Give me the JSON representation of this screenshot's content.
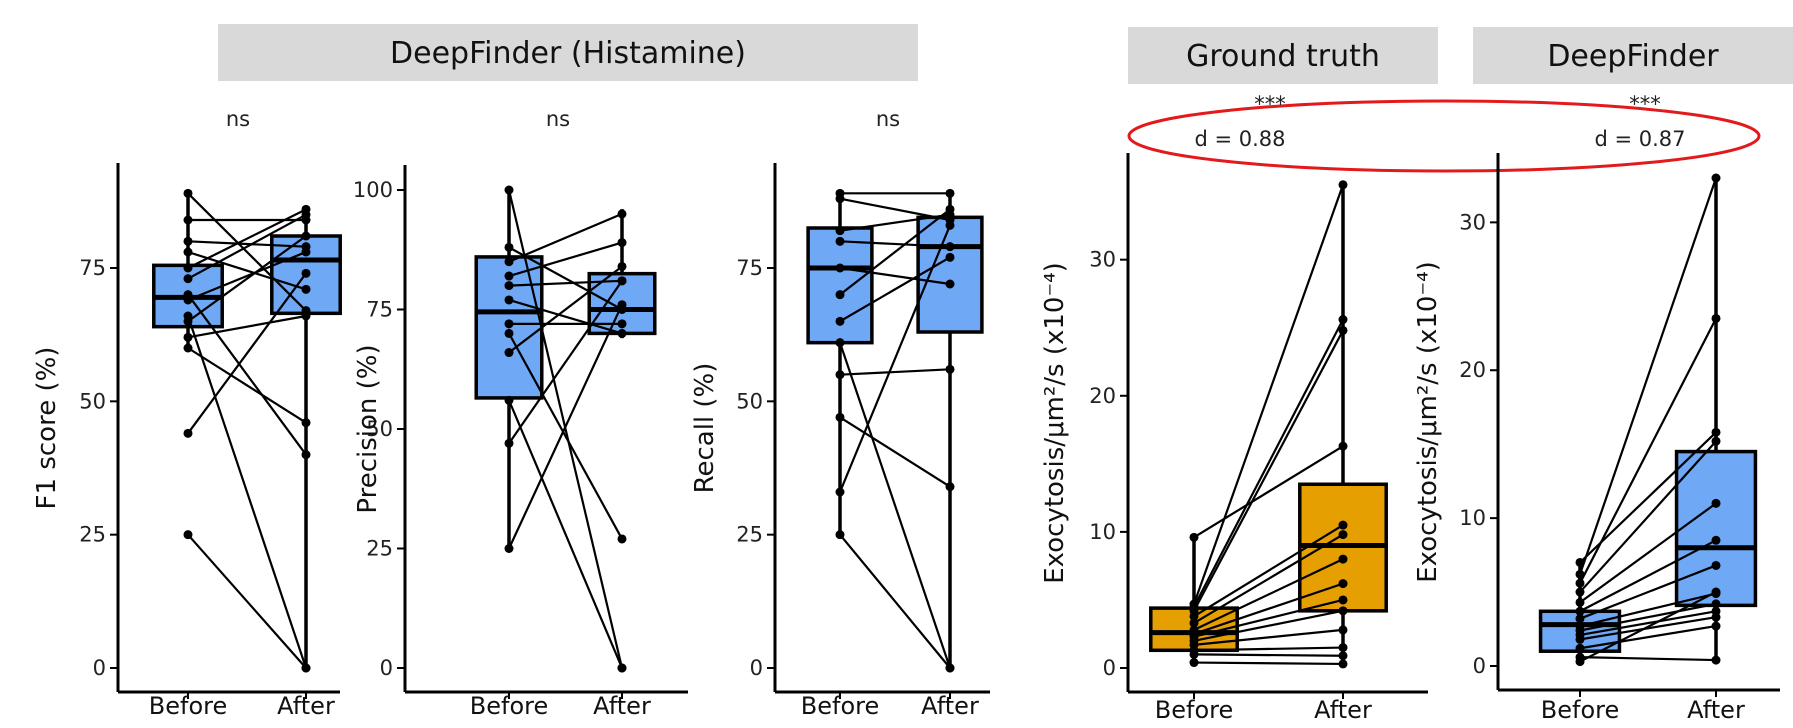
{
  "strips": {
    "histamine": "DeepFinder (Histamine)",
    "ground_truth": "Ground truth",
    "deepfinder": "DeepFinder"
  },
  "colors": {
    "blue_fill": "#6fa8f5",
    "orange_fill": "#e69f00",
    "callout": "#e31a1c"
  },
  "chart_data": [
    {
      "type": "box",
      "strip": "DeepFinder (Histamine)",
      "ylabel": "F1 score (%)",
      "ylim": [
        0,
        90
      ],
      "yticks": [
        0,
        25,
        50,
        75
      ],
      "categories": [
        "Before",
        "After"
      ],
      "fill": "blue",
      "significance": "ns",
      "effect_size": "",
      "boxes": [
        {
          "q1": 64,
          "median": 69.5,
          "q3": 75.5,
          "whisker_low": 60,
          "whisker_high": 89
        },
        {
          "q1": 66.5,
          "median": 76.5,
          "q3": 81,
          "whisker_low": 0,
          "whisker_high": 86.5
        }
      ],
      "pairs": [
        [
          89,
          67
        ],
        [
          84,
          84
        ],
        [
          80,
          79
        ],
        [
          78,
          71
        ],
        [
          75,
          86
        ],
        [
          73,
          85
        ],
        [
          70,
          40
        ],
        [
          69,
          78
        ],
        [
          66,
          0
        ],
        [
          65,
          81
        ],
        [
          62,
          66
        ],
        [
          60,
          46
        ],
        [
          44,
          74
        ],
        [
          25,
          0
        ]
      ]
    },
    {
      "type": "box",
      "strip": "DeepFinder (Histamine)",
      "ylabel": "Precision (%)",
      "ylim": [
        0,
        100
      ],
      "yticks": [
        0,
        25,
        50,
        75,
        100
      ],
      "categories": [
        "Before",
        "After"
      ],
      "fill": "blue",
      "significance": "ns",
      "effect_size": "",
      "boxes": [
        {
          "q1": 56.5,
          "median": 74.5,
          "q3": 86,
          "whisker_low": 25,
          "whisker_high": 100
        },
        {
          "q1": 70,
          "median": 75,
          "q3": 82.5,
          "whisker_low": 69,
          "whisker_high": 96
        }
      ],
      "pairs": [
        [
          100,
          0
        ],
        [
          88,
          75
        ],
        [
          85,
          95
        ],
        [
          82,
          89
        ],
        [
          80,
          81
        ],
        [
          77,
          70
        ],
        [
          72,
          72
        ],
        [
          70,
          27
        ],
        [
          66,
          84
        ],
        [
          56,
          0
        ],
        [
          47,
          81
        ],
        [
          25,
          76
        ]
      ]
    },
    {
      "type": "box",
      "strip": "DeepFinder (Histamine)",
      "ylabel": "Recall (%)",
      "ylim": [
        0,
        90
      ],
      "yticks": [
        0,
        25,
        50,
        75
      ],
      "categories": [
        "Before",
        "After"
      ],
      "fill": "blue",
      "significance": "ns",
      "effect_size": "",
      "boxes": [
        {
          "q1": 61,
          "median": 75,
          "q3": 82.5,
          "whisker_low": 25,
          "whisker_high": 89
        },
        {
          "q1": 63,
          "median": 79,
          "q3": 84.5,
          "whisker_low": 0,
          "whisker_high": 89
        }
      ],
      "pairs": [
        [
          89,
          89
        ],
        [
          88,
          84
        ],
        [
          82,
          85
        ],
        [
          80,
          79
        ],
        [
          75,
          72
        ],
        [
          70,
          86
        ],
        [
          65,
          77
        ],
        [
          61,
          0
        ],
        [
          55,
          56
        ],
        [
          47,
          34
        ],
        [
          33,
          83
        ],
        [
          25,
          0
        ]
      ]
    },
    {
      "type": "box",
      "strip": "Ground truth",
      "ylabel": "Exocytosis/μm²/s (x10⁻⁴)",
      "ylim": [
        0,
        36
      ],
      "yticks": [
        0,
        10,
        20,
        30
      ],
      "categories": [
        "Before",
        "After"
      ],
      "fill": "orange",
      "significance": "***",
      "effect_size": "d = 0.88",
      "boxes": [
        {
          "q1": 1.3,
          "median": 2.6,
          "q3": 4.4,
          "whisker_low": 0.4,
          "whisker_high": 9.6
        },
        {
          "q1": 4.2,
          "median": 9.0,
          "q3": 13.5,
          "whisker_low": 0.3,
          "whisker_high": 35.5
        }
      ],
      "pairs": [
        [
          9.6,
          16.3
        ],
        [
          4.7,
          35.5
        ],
        [
          4.5,
          25.6
        ],
        [
          4.2,
          24.8
        ],
        [
          3.8,
          10.5
        ],
        [
          3.3,
          9.8
        ],
        [
          2.8,
          8.0
        ],
        [
          2.5,
          6.2
        ],
        [
          2.3,
          5.0
        ],
        [
          2.0,
          4.2
        ],
        [
          1.7,
          2.8
        ],
        [
          1.3,
          1.5
        ],
        [
          1.0,
          0.9
        ],
        [
          0.4,
          0.3
        ]
      ]
    },
    {
      "type": "box",
      "strip": "DeepFinder",
      "ylabel": "Exocytosis/μm²/s (x10⁻⁴)",
      "ylim": [
        0,
        33
      ],
      "yticks": [
        0,
        10,
        20,
        30
      ],
      "categories": [
        "Before",
        "After"
      ],
      "fill": "blue",
      "significance": "***",
      "effect_size": "d = 0.87",
      "boxes": [
        {
          "q1": 1.0,
          "median": 2.8,
          "q3": 3.7,
          "whisker_low": 0.3,
          "whisker_high": 7.0
        },
        {
          "q1": 4.1,
          "median": 8.0,
          "q3": 14.5,
          "whisker_low": 0.4,
          "whisker_high": 33
        }
      ],
      "pairs": [
        [
          7.0,
          15.8
        ],
        [
          6.2,
          33
        ],
        [
          5.6,
          23.5
        ],
        [
          5.0,
          15.2
        ],
        [
          4.3,
          11.0
        ],
        [
          3.7,
          8.5
        ],
        [
          3.2,
          6.8
        ],
        [
          2.7,
          4.9
        ],
        [
          2.4,
          4.2
        ],
        [
          2.1,
          3.7
        ],
        [
          1.8,
          3.3
        ],
        [
          1.2,
          2.7
        ],
        [
          0.6,
          0.4
        ],
        [
          0.3,
          5.0
        ]
      ]
    }
  ]
}
